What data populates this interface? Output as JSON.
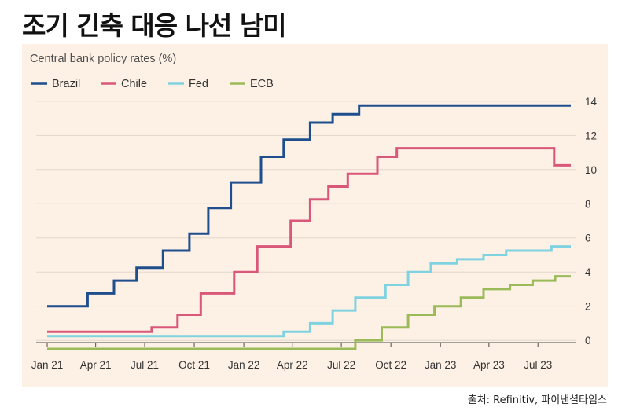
{
  "headline": "조기 긴축 대응 나선 남미",
  "source": "출처: Refinitiv, 파이낸셜타임스",
  "chart_data": {
    "type": "line",
    "step": true,
    "title": "Central bank policy rates (%)",
    "xlabel": "",
    "ylabel": "",
    "ylim": [
      -0.5,
      14.5
    ],
    "y_ticks": [
      0,
      2,
      4,
      6,
      8,
      10,
      12,
      14
    ],
    "y_axis_position": "right",
    "grid": "horizontal",
    "legend_position": "top-left",
    "x_range": [
      "2021-01-01",
      "2023-08-31"
    ],
    "x_ticks": [
      {
        "label": "Jan 21",
        "date": "2021-01-01"
      },
      {
        "label": "Apr 21",
        "date": "2021-04-01"
      },
      {
        "label": "Jul 21",
        "date": "2021-07-01"
      },
      {
        "label": "Oct 21",
        "date": "2021-10-01"
      },
      {
        "label": "Jan 22",
        "date": "2022-01-01"
      },
      {
        "label": "Apr 22",
        "date": "2022-04-01"
      },
      {
        "label": "Jul 22",
        "date": "2022-07-01"
      },
      {
        "label": "Oct 22",
        "date": "2022-10-01"
      },
      {
        "label": "Jan 23",
        "date": "2023-01-01"
      },
      {
        "label": "Apr 23",
        "date": "2023-04-01"
      },
      {
        "label": "Jul 23",
        "date": "2023-07-01"
      }
    ],
    "series": [
      {
        "name": "Brazil",
        "color": "#1f4e8c",
        "points": [
          {
            "x": "2021-01-01",
            "y": 2.0
          },
          {
            "x": "2021-03-17",
            "y": 2.75
          },
          {
            "x": "2021-05-05",
            "y": 3.5
          },
          {
            "x": "2021-06-16",
            "y": 4.25
          },
          {
            "x": "2021-08-04",
            "y": 5.25
          },
          {
            "x": "2021-09-22",
            "y": 6.25
          },
          {
            "x": "2021-10-27",
            "y": 7.75
          },
          {
            "x": "2021-12-08",
            "y": 9.25
          },
          {
            "x": "2022-02-02",
            "y": 10.75
          },
          {
            "x": "2022-03-16",
            "y": 11.75
          },
          {
            "x": "2022-05-04",
            "y": 12.75
          },
          {
            "x": "2022-06-15",
            "y": 13.25
          },
          {
            "x": "2022-08-03",
            "y": 13.75
          },
          {
            "x": "2023-08-31",
            "y": 13.75
          }
        ]
      },
      {
        "name": "Chile",
        "color": "#d9587a",
        "points": [
          {
            "x": "2021-01-01",
            "y": 0.5
          },
          {
            "x": "2021-07-14",
            "y": 0.75
          },
          {
            "x": "2021-08-31",
            "y": 1.5
          },
          {
            "x": "2021-10-13",
            "y": 2.75
          },
          {
            "x": "2021-12-14",
            "y": 4.0
          },
          {
            "x": "2022-01-26",
            "y": 5.5
          },
          {
            "x": "2022-03-29",
            "y": 7.0
          },
          {
            "x": "2022-05-04",
            "y": 8.25
          },
          {
            "x": "2022-06-07",
            "y": 9.0
          },
          {
            "x": "2022-07-13",
            "y": 9.75
          },
          {
            "x": "2022-09-06",
            "y": 10.75
          },
          {
            "x": "2022-10-12",
            "y": 11.25
          },
          {
            "x": "2023-07-28",
            "y": 11.25
          },
          {
            "x": "2023-07-31",
            "y": 10.25
          },
          {
            "x": "2023-08-31",
            "y": 10.25
          }
        ]
      },
      {
        "name": "Fed",
        "color": "#7fd3e0",
        "points": [
          {
            "x": "2021-01-01",
            "y": 0.25
          },
          {
            "x": "2022-03-16",
            "y": 0.5
          },
          {
            "x": "2022-05-04",
            "y": 1.0
          },
          {
            "x": "2022-06-15",
            "y": 1.75
          },
          {
            "x": "2022-07-27",
            "y": 2.5
          },
          {
            "x": "2022-09-21",
            "y": 3.25
          },
          {
            "x": "2022-11-02",
            "y": 4.0
          },
          {
            "x": "2022-12-14",
            "y": 4.5
          },
          {
            "x": "2023-02-01",
            "y": 4.75
          },
          {
            "x": "2023-03-22",
            "y": 5.0
          },
          {
            "x": "2023-05-03",
            "y": 5.25
          },
          {
            "x": "2023-07-26",
            "y": 5.5
          },
          {
            "x": "2023-08-31",
            "y": 5.5
          }
        ]
      },
      {
        "name": "ECB",
        "color": "#9bbb59",
        "points": [
          {
            "x": "2021-01-01",
            "y": -0.5
          },
          {
            "x": "2022-07-27",
            "y": 0.0
          },
          {
            "x": "2022-09-14",
            "y": 0.75
          },
          {
            "x": "2022-11-02",
            "y": 1.5
          },
          {
            "x": "2022-12-21",
            "y": 2.0
          },
          {
            "x": "2023-02-08",
            "y": 2.5
          },
          {
            "x": "2023-03-22",
            "y": 3.0
          },
          {
            "x": "2023-05-10",
            "y": 3.25
          },
          {
            "x": "2023-06-21",
            "y": 3.5
          },
          {
            "x": "2023-08-02",
            "y": 3.75
          },
          {
            "x": "2023-08-31",
            "y": 3.75
          }
        ]
      }
    ]
  }
}
